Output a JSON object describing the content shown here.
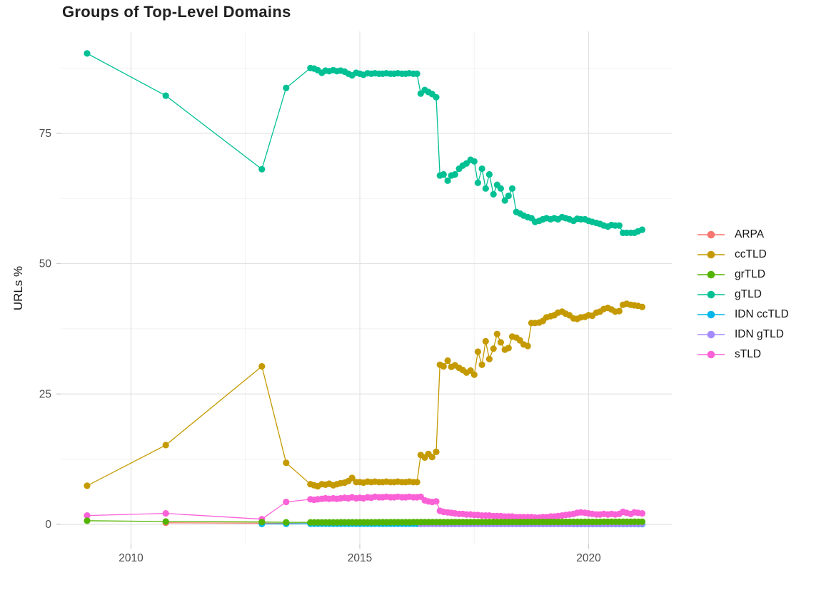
{
  "chart_data": {
    "type": "line",
    "title": "Groups of Top-Level Domains",
    "xlabel": "",
    "ylabel": "URLs %",
    "grid": "on",
    "legend": {
      "position": "right",
      "title": ""
    },
    "x_axis": {
      "range": [
        2008.46,
        2021.82
      ],
      "ticks": [
        2010,
        2015,
        2020
      ],
      "tick_labels": [
        "2010",
        "2015",
        "2020"
      ],
      "minor": [
        2012.5,
        2017.5
      ]
    },
    "y_axis": {
      "range": [
        -3.8,
        94.5
      ],
      "ticks": [
        0,
        25,
        50,
        75
      ],
      "tick_labels": [
        "0",
        "25",
        "50",
        "75"
      ],
      "minor": [
        12.5,
        37.5,
        62.5,
        87.5
      ]
    },
    "draw_order": [
      "ARPA",
      "IDN ccTLD",
      "IDN gTLD",
      "sTLD",
      "ccTLD",
      "gTLD",
      "grTLD"
    ],
    "series": [
      {
        "name": "ARPA",
        "color": "#F8766D",
        "points": [
          [
            2010.76,
            0.3
          ],
          [
            2012.86,
            0.22
          ],
          [
            2013.39,
            0.18
          ],
          [
            2013.92,
            0.15
          ]
        ]
      },
      {
        "name": "ccTLD",
        "color": "#C49A00",
        "points": [
          [
            2009.04,
            7.4
          ],
          [
            2010.76,
            15.2
          ],
          [
            2012.86,
            30.3
          ],
          [
            2013.39,
            11.8
          ],
          [
            2013.92,
            7.7
          ],
          [
            2014,
            7.5
          ],
          [
            2014.08,
            7.3
          ],
          [
            2014.17,
            7.7
          ],
          [
            2014.25,
            7.6
          ],
          [
            2014.33,
            7.8
          ],
          [
            2014.42,
            7.5
          ],
          [
            2014.5,
            7.7
          ],
          [
            2014.58,
            7.9
          ],
          [
            2014.67,
            8
          ],
          [
            2014.75,
            8.3
          ],
          [
            2014.83,
            8.9
          ],
          [
            2014.92,
            8.1
          ],
          [
            2015,
            8.1
          ],
          [
            2015.08,
            8
          ],
          [
            2015.17,
            8.2
          ],
          [
            2015.25,
            8.1
          ],
          [
            2015.33,
            8.2
          ],
          [
            2015.42,
            8.1
          ],
          [
            2015.5,
            8.1
          ],
          [
            2015.58,
            8.2
          ],
          [
            2015.67,
            8.1
          ],
          [
            2015.75,
            8.1
          ],
          [
            2015.83,
            8.2
          ],
          [
            2015.92,
            8.1
          ],
          [
            2016,
            8.1
          ],
          [
            2016.08,
            8.2
          ],
          [
            2016.17,
            8.1
          ],
          [
            2016.25,
            8.1
          ],
          [
            2016.33,
            13.3
          ],
          [
            2016.42,
            12.8
          ],
          [
            2016.5,
            13.5
          ],
          [
            2016.58,
            12.9
          ],
          [
            2016.67,
            13.9
          ],
          [
            2016.75,
            30.6
          ],
          [
            2016.83,
            30.3
          ],
          [
            2016.92,
            31.4
          ],
          [
            2017,
            30.2
          ],
          [
            2017.08,
            30.5
          ],
          [
            2017.17,
            30
          ],
          [
            2017.25,
            29.6
          ],
          [
            2017.33,
            29.1
          ],
          [
            2017.42,
            29.5
          ],
          [
            2017.5,
            28.7
          ],
          [
            2017.58,
            33.1
          ],
          [
            2017.67,
            30.6
          ],
          [
            2017.75,
            35.1
          ],
          [
            2017.83,
            31.7
          ],
          [
            2017.92,
            33.7
          ],
          [
            2018,
            36.5
          ],
          [
            2018.08,
            34.9
          ],
          [
            2018.17,
            33.5
          ],
          [
            2018.25,
            33.8
          ],
          [
            2018.33,
            36
          ],
          [
            2018.42,
            35.8
          ],
          [
            2018.5,
            35.3
          ],
          [
            2018.58,
            34.5
          ],
          [
            2018.67,
            34.2
          ],
          [
            2018.75,
            38.6
          ],
          [
            2018.83,
            38.6
          ],
          [
            2018.92,
            38.7
          ],
          [
            2019,
            39
          ],
          [
            2019.08,
            39.7
          ],
          [
            2019.17,
            39.9
          ],
          [
            2019.25,
            40.1
          ],
          [
            2019.33,
            40.6
          ],
          [
            2019.42,
            40.8
          ],
          [
            2019.5,
            40.4
          ],
          [
            2019.58,
            40.1
          ],
          [
            2019.67,
            39.5
          ],
          [
            2019.75,
            39.4
          ],
          [
            2019.83,
            39.7
          ],
          [
            2019.92,
            39.8
          ],
          [
            2020,
            40.1
          ],
          [
            2020.08,
            40
          ],
          [
            2020.17,
            40.6
          ],
          [
            2020.25,
            40.8
          ],
          [
            2020.33,
            41.3
          ],
          [
            2020.42,
            41.5
          ],
          [
            2020.5,
            41.2
          ],
          [
            2020.58,
            40.8
          ],
          [
            2020.67,
            40.9
          ],
          [
            2020.75,
            42.1
          ],
          [
            2020.83,
            42.3
          ],
          [
            2020.92,
            42.1
          ],
          [
            2021,
            42
          ],
          [
            2021.08,
            41.9
          ],
          [
            2021.17,
            41.7
          ]
        ]
      },
      {
        "name": "grTLD",
        "color": "#53B400",
        "points": [
          [
            2009.04,
            0.7
          ],
          [
            2010.76,
            0.55
          ],
          [
            2012.86,
            0.45
          ],
          [
            2013.39,
            0.4
          ]
        ],
        "runs": [
          {
            "from": 2013.92,
            "to": 2021.17,
            "value": 0.38,
            "value_end": 0.5
          }
        ]
      },
      {
        "name": "gTLD",
        "color": "#00C094",
        "points": [
          [
            2009.04,
            90.3
          ],
          [
            2010.76,
            82.2
          ],
          [
            2012.86,
            68.1
          ],
          [
            2013.39,
            83.7
          ],
          [
            2013.92,
            87.5
          ],
          [
            2014,
            87.4
          ],
          [
            2014.08,
            87.1
          ],
          [
            2014.17,
            86.6
          ],
          [
            2014.25,
            87
          ],
          [
            2014.33,
            86.9
          ],
          [
            2014.42,
            87.1
          ],
          [
            2014.5,
            86.9
          ],
          [
            2014.58,
            87
          ],
          [
            2014.67,
            86.8
          ],
          [
            2014.75,
            86.4
          ],
          [
            2014.83,
            86.1
          ],
          [
            2014.92,
            86.6
          ],
          [
            2015,
            86.4
          ],
          [
            2015.08,
            86.2
          ],
          [
            2015.17,
            86.5
          ],
          [
            2015.25,
            86.4
          ],
          [
            2015.33,
            86.5
          ],
          [
            2015.42,
            86.4
          ],
          [
            2015.5,
            86.4
          ],
          [
            2015.58,
            86.5
          ],
          [
            2015.67,
            86.4
          ],
          [
            2015.75,
            86.4
          ],
          [
            2015.83,
            86.5
          ],
          [
            2015.92,
            86.4
          ],
          [
            2016,
            86.4
          ],
          [
            2016.08,
            86.5
          ],
          [
            2016.17,
            86.4
          ],
          [
            2016.25,
            86.4
          ],
          [
            2016.33,
            82.6
          ],
          [
            2016.42,
            83.3
          ],
          [
            2016.5,
            82.9
          ],
          [
            2016.58,
            82.5
          ],
          [
            2016.67,
            81.9
          ],
          [
            2016.75,
            66.9
          ],
          [
            2016.83,
            67.1
          ],
          [
            2016.92,
            65.9
          ],
          [
            2017,
            66.9
          ],
          [
            2017.08,
            67.1
          ],
          [
            2017.17,
            68.2
          ],
          [
            2017.25,
            68.8
          ],
          [
            2017.33,
            69.2
          ],
          [
            2017.42,
            69.9
          ],
          [
            2017.5,
            69.6
          ],
          [
            2017.58,
            65.5
          ],
          [
            2017.67,
            68.2
          ],
          [
            2017.75,
            64.4
          ],
          [
            2017.83,
            67.1
          ],
          [
            2017.92,
            63.3
          ],
          [
            2018,
            65.1
          ],
          [
            2018.08,
            64.4
          ],
          [
            2018.17,
            62.1
          ],
          [
            2018.25,
            63
          ],
          [
            2018.33,
            64.4
          ],
          [
            2018.42,
            59.9
          ],
          [
            2018.5,
            59.6
          ],
          [
            2018.58,
            59.2
          ],
          [
            2018.67,
            58.9
          ],
          [
            2018.75,
            58.7
          ],
          [
            2018.83,
            58
          ],
          [
            2018.92,
            58.2
          ],
          [
            2019,
            58.5
          ],
          [
            2019.08,
            58.7
          ],
          [
            2019.17,
            58.5
          ],
          [
            2019.25,
            58.7
          ],
          [
            2019.33,
            58.5
          ],
          [
            2019.42,
            58.9
          ],
          [
            2019.5,
            58.7
          ],
          [
            2019.58,
            58.5
          ],
          [
            2019.67,
            58.2
          ],
          [
            2019.75,
            58.6
          ],
          [
            2019.83,
            58.5
          ],
          [
            2019.92,
            58.5
          ],
          [
            2020,
            58.2
          ],
          [
            2020.08,
            58
          ],
          [
            2020.17,
            57.8
          ],
          [
            2020.25,
            57.6
          ],
          [
            2020.33,
            57.3
          ],
          [
            2020.42,
            57.1
          ],
          [
            2020.5,
            57.4
          ],
          [
            2020.58,
            57.3
          ],
          [
            2020.67,
            57.3
          ],
          [
            2020.75,
            55.9
          ],
          [
            2020.83,
            55.9
          ],
          [
            2020.92,
            55.9
          ],
          [
            2021,
            55.9
          ],
          [
            2021.08,
            56.2
          ],
          [
            2021.17,
            56.5
          ]
        ]
      },
      {
        "name": "IDN ccTLD",
        "color": "#00B6EB",
        "points": [
          [
            2012.86,
            0.08
          ],
          [
            2013.39,
            0.1
          ]
        ],
        "runs": [
          {
            "from": 2013.92,
            "to": 2021.17,
            "value": 0.13,
            "value_end": 0.06
          }
        ]
      },
      {
        "name": "IDN gTLD",
        "color": "#A58AFF",
        "points": [],
        "runs": [
          {
            "from": 2016.33,
            "to": 2021.17,
            "value": 0.08,
            "value_end": 0.09
          }
        ]
      },
      {
        "name": "sTLD",
        "color": "#FB61D7",
        "points": [
          [
            2009.04,
            1.7
          ],
          [
            2010.76,
            2.1
          ],
          [
            2012.86,
            1
          ],
          [
            2013.39,
            4.3
          ],
          [
            2013.92,
            4.8
          ],
          [
            2014,
            4.7
          ],
          [
            2014.08,
            4.8
          ],
          [
            2014.17,
            4.9
          ],
          [
            2014.25,
            5
          ],
          [
            2014.33,
            4.9
          ],
          [
            2014.42,
            5
          ],
          [
            2014.5,
            4.9
          ],
          [
            2014.58,
            5
          ],
          [
            2014.67,
            5.1
          ],
          [
            2014.75,
            5
          ],
          [
            2014.83,
            5.2
          ],
          [
            2014.92,
            5
          ],
          [
            2015,
            5.1
          ],
          [
            2015.08,
            5
          ],
          [
            2015.17,
            5.2
          ],
          [
            2015.25,
            5.1
          ],
          [
            2015.33,
            5.3
          ],
          [
            2015.42,
            5.2
          ],
          [
            2015.5,
            5.2
          ],
          [
            2015.58,
            5.3
          ],
          [
            2015.67,
            5.2
          ],
          [
            2015.75,
            5.2
          ],
          [
            2015.83,
            5.3
          ],
          [
            2015.92,
            5.2
          ],
          [
            2016,
            5.2
          ],
          [
            2016.08,
            5.3
          ],
          [
            2016.17,
            5.2
          ],
          [
            2016.25,
            5.2
          ],
          [
            2016.33,
            5.3
          ],
          [
            2016.42,
            4.6
          ],
          [
            2016.5,
            4.4
          ],
          [
            2016.58,
            4.3
          ],
          [
            2016.67,
            4.4
          ],
          [
            2016.75,
            2.6
          ],
          [
            2016.83,
            2.4
          ],
          [
            2016.92,
            2.3
          ],
          [
            2017,
            2.2
          ],
          [
            2017.08,
            2.1
          ],
          [
            2017.17,
            2
          ],
          [
            2017.25,
            2
          ],
          [
            2017.33,
            1.9
          ],
          [
            2017.42,
            1.9
          ],
          [
            2017.5,
            1.8
          ],
          [
            2017.58,
            1.8
          ],
          [
            2017.67,
            1.7
          ],
          [
            2017.75,
            1.7
          ],
          [
            2017.83,
            1.7
          ],
          [
            2017.92,
            1.6
          ],
          [
            2018,
            1.6
          ],
          [
            2018.08,
            1.6
          ],
          [
            2018.17,
            1.5
          ],
          [
            2018.25,
            1.5
          ],
          [
            2018.33,
            1.5
          ],
          [
            2018.42,
            1.4
          ],
          [
            2018.5,
            1.4
          ],
          [
            2018.58,
            1.4
          ],
          [
            2018.67,
            1.4
          ],
          [
            2018.75,
            1.4
          ],
          [
            2018.83,
            1.3
          ],
          [
            2018.92,
            1.3
          ],
          [
            2019,
            1.4
          ],
          [
            2019.08,
            1.4
          ],
          [
            2019.17,
            1.5
          ],
          [
            2019.25,
            1.5
          ],
          [
            2019.33,
            1.6
          ],
          [
            2019.42,
            1.7
          ],
          [
            2019.5,
            1.8
          ],
          [
            2019.58,
            1.9
          ],
          [
            2019.67,
            2
          ],
          [
            2019.75,
            2.2
          ],
          [
            2019.83,
            2.3
          ],
          [
            2019.92,
            2.2
          ],
          [
            2020,
            2.1
          ],
          [
            2020.08,
            2
          ],
          [
            2020.17,
            1.9
          ],
          [
            2020.25,
            1.9
          ],
          [
            2020.33,
            2
          ],
          [
            2020.42,
            1.9
          ],
          [
            2020.5,
            2
          ],
          [
            2020.58,
            1.9
          ],
          [
            2020.67,
            2
          ],
          [
            2020.75,
            2.4
          ],
          [
            2020.83,
            2.2
          ],
          [
            2020.92,
            2
          ],
          [
            2021,
            2.3
          ],
          [
            2021.08,
            2.2
          ],
          [
            2021.17,
            2.1
          ]
        ]
      }
    ]
  }
}
